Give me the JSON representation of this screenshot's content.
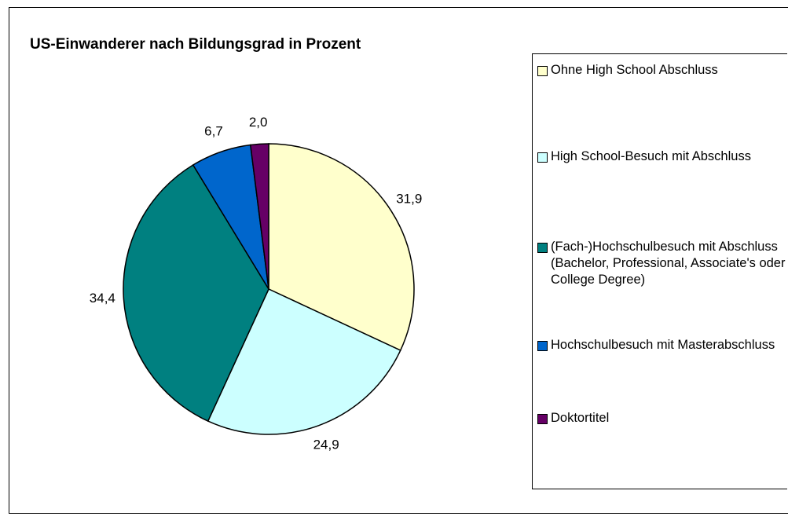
{
  "chart_data": {
    "type": "pie",
    "title": "US-Einwanderer nach Bildungsgrad in Prozent",
    "categories": [
      "Ohne High School Abschluss",
      "High School-Besuch mit Abschluss",
      "(Fach-)Hochschulbesuch mit Abschluss (Bachelor, Professional, Associate's oder College Degree)",
      "Hochschulbesuch mit Masterabschluss",
      "Doktortitel"
    ],
    "values": [
      31.9,
      24.9,
      34.4,
      6.7,
      2.0
    ],
    "value_labels": [
      "31,9",
      "24,9",
      "34,4",
      "6,7",
      "2,0"
    ],
    "colors": [
      "#ffffcc",
      "#ccffff",
      "#008080",
      "#0066cc",
      "#660066"
    ],
    "legend": "right"
  }
}
